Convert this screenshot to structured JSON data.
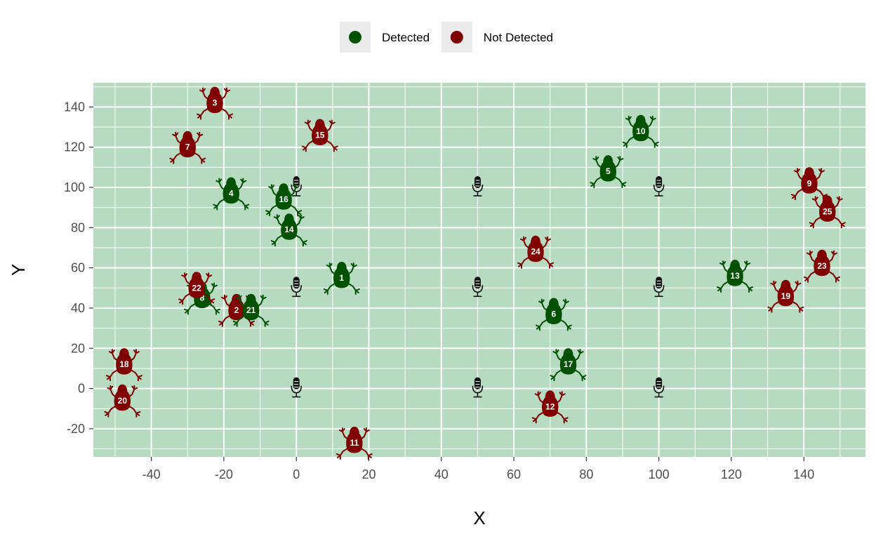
{
  "chart_data": {
    "type": "scatter",
    "xlabel": "X",
    "ylabel": "Y",
    "xlim": [
      -56,
      157
    ],
    "ylim": [
      -34,
      152
    ],
    "x_ticks": [
      -40,
      -20,
      0,
      20,
      40,
      60,
      80,
      100,
      120,
      140
    ],
    "y_ticks": [
      -20,
      0,
      20,
      40,
      60,
      80,
      100,
      120,
      140
    ],
    "grid": true,
    "panel_background": "#b6dbc1",
    "legend": {
      "position": "top",
      "entries": [
        {
          "name": "Detected",
          "color": "#005200"
        },
        {
          "name": "Not Detected",
          "color": "#800000"
        }
      ]
    },
    "recorders": [
      {
        "x": 0,
        "y": 100
      },
      {
        "x": 50,
        "y": 100
      },
      {
        "x": 100,
        "y": 100
      },
      {
        "x": 0,
        "y": 50
      },
      {
        "x": 50,
        "y": 50
      },
      {
        "x": 100,
        "y": 50
      },
      {
        "x": 0,
        "y": 0
      },
      {
        "x": 50,
        "y": 0
      },
      {
        "x": 100,
        "y": 0
      }
    ],
    "frogs": [
      {
        "id": "1",
        "x": 12.5,
        "y": 55,
        "status": "Detected"
      },
      {
        "id": "2",
        "x": -16.5,
        "y": 39,
        "status": "Not Detected"
      },
      {
        "id": "3",
        "x": -22.5,
        "y": 142,
        "status": "Not Detected"
      },
      {
        "id": "4",
        "x": -18,
        "y": 97,
        "status": "Detected"
      },
      {
        "id": "5",
        "x": 86,
        "y": 108,
        "status": "Detected"
      },
      {
        "id": "6",
        "x": 71,
        "y": 37,
        "status": "Detected"
      },
      {
        "id": "7",
        "x": -30,
        "y": 120,
        "status": "Not Detected"
      },
      {
        "id": "8",
        "x": -26,
        "y": 45,
        "status": "Detected"
      },
      {
        "id": "9",
        "x": 141.5,
        "y": 102,
        "status": "Not Detected"
      },
      {
        "id": "10",
        "x": 95,
        "y": 128,
        "status": "Detected"
      },
      {
        "id": "11",
        "x": 16,
        "y": -27,
        "status": "Not Detected"
      },
      {
        "id": "12",
        "x": 70,
        "y": -9,
        "status": "Not Detected"
      },
      {
        "id": "13",
        "x": 121,
        "y": 56,
        "status": "Detected"
      },
      {
        "id": "14",
        "x": -2,
        "y": 79,
        "status": "Detected"
      },
      {
        "id": "15",
        "x": 6.5,
        "y": 126,
        "status": "Not Detected"
      },
      {
        "id": "16",
        "x": -3.5,
        "y": 94,
        "status": "Detected"
      },
      {
        "id": "17",
        "x": 75,
        "y": 12,
        "status": "Detected"
      },
      {
        "id": "18",
        "x": -47.5,
        "y": 12,
        "status": "Not Detected"
      },
      {
        "id": "19",
        "x": 135,
        "y": 46,
        "status": "Not Detected"
      },
      {
        "id": "20",
        "x": -48,
        "y": -6,
        "status": "Not Detected"
      },
      {
        "id": "21",
        "x": -12.5,
        "y": 39,
        "status": "Detected"
      },
      {
        "id": "22",
        "x": -27.5,
        "y": 50,
        "status": "Not Detected"
      },
      {
        "id": "23",
        "x": 145,
        "y": 61,
        "status": "Not Detected"
      },
      {
        "id": "24",
        "x": 66,
        "y": 68,
        "status": "Not Detected"
      },
      {
        "id": "25",
        "x": 146.5,
        "y": 88,
        "status": "Not Detected"
      }
    ]
  }
}
